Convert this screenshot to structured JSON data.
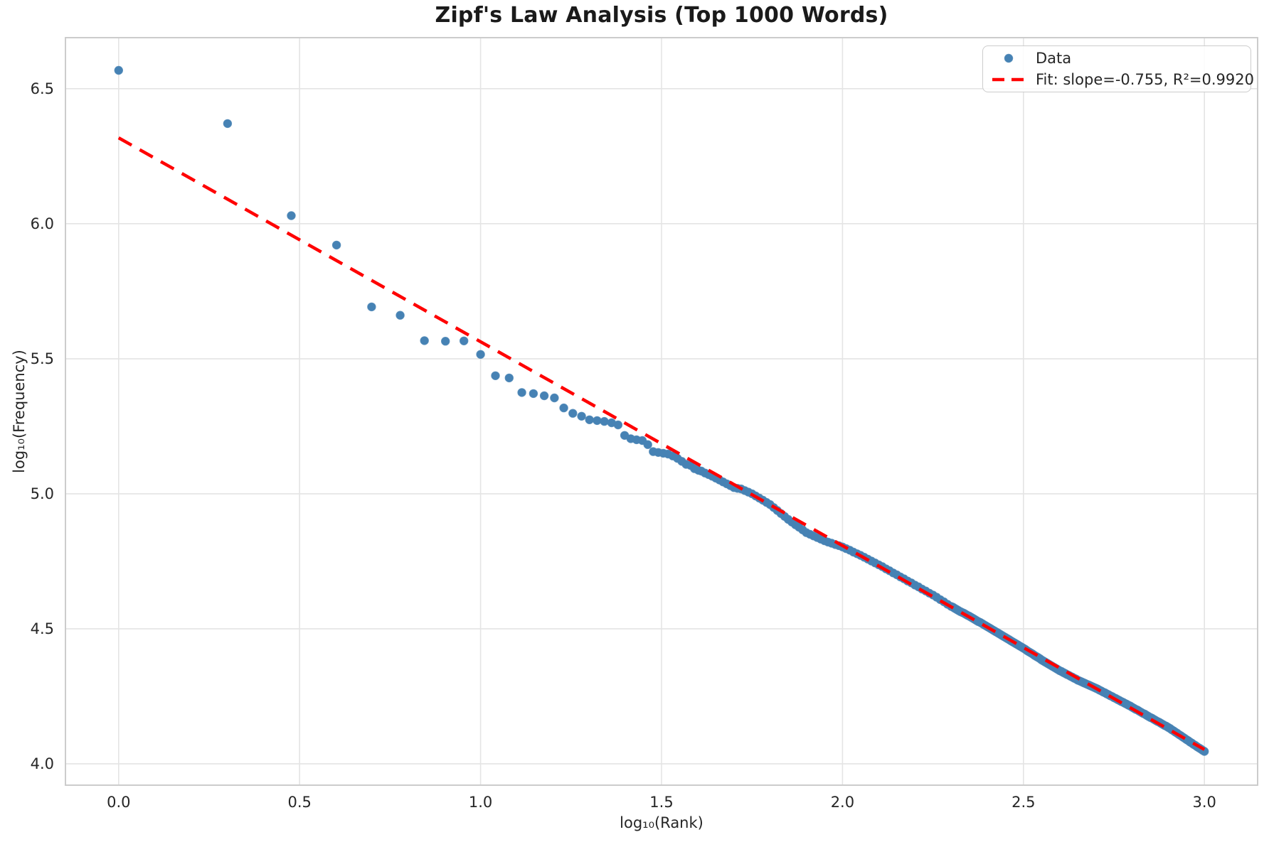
{
  "chart_data": {
    "type": "scatter",
    "title": "Zipf's Law Analysis (Top 1000 Words)",
    "xlabel": "log₁₀(Rank)",
    "ylabel": "log₁₀(Frequency)",
    "xlim": [
      -0.147,
      3.147
    ],
    "ylim": [
      3.921,
      6.689
    ],
    "xticks": [
      0.0,
      0.5,
      1.0,
      1.5,
      2.0,
      2.5,
      3.0
    ],
    "xtick_labels": [
      "0.0",
      "0.5",
      "1.0",
      "1.5",
      "2.0",
      "2.5",
      "3.0"
    ],
    "yticks": [
      4.0,
      4.5,
      5.0,
      5.5,
      6.0,
      6.5
    ],
    "ytick_labels": [
      "4.0",
      "4.5",
      "5.0",
      "5.5",
      "6.0",
      "6.5"
    ],
    "grid": true,
    "legend": {
      "position": "upper right",
      "entries": [
        {
          "label": "Data",
          "type": "marker"
        },
        {
          "label": "Fit: slope=-0.755, R²=0.9920",
          "type": "dashed-line"
        }
      ]
    },
    "fit_line": {
      "slope": -0.755,
      "r_squared": 0.992,
      "x": [
        0.0,
        3.0
      ],
      "y": [
        6.318,
        4.053
      ]
    },
    "colors": {
      "marker": "#4682b4",
      "marker_alpha": 0.5,
      "marker_edge_alpha": 0.85,
      "fit_line": "#ff0000",
      "grid": "#e4e4e4",
      "spine": "#cccccc",
      "text": "#262626",
      "title": "#1a1a1a"
    },
    "marker_radius": 5.5,
    "series": [
      {
        "name": "Data",
        "points": [
          [
            0.0,
            6.568
          ],
          [
            0.301,
            6.371
          ],
          [
            0.477,
            6.03
          ],
          [
            0.602,
            5.921
          ],
          [
            0.699,
            5.692
          ],
          [
            0.778,
            5.661
          ],
          [
            0.845,
            5.567
          ],
          [
            0.903,
            5.565
          ],
          [
            0.954,
            5.566
          ],
          [
            1.0,
            5.516
          ],
          [
            1.041,
            5.437
          ],
          [
            1.079,
            5.429
          ],
          [
            1.114,
            5.375
          ],
          [
            1.146,
            5.371
          ],
          [
            1.176,
            5.363
          ],
          [
            1.204,
            5.355
          ],
          [
            1.23,
            5.318
          ],
          [
            1.255,
            5.298
          ],
          [
            1.279,
            5.287
          ],
          [
            1.301,
            5.274
          ],
          [
            1.322,
            5.271
          ],
          [
            1.342,
            5.268
          ],
          [
            1.362,
            5.263
          ],
          [
            1.38,
            5.255
          ],
          [
            1.398,
            5.216
          ],
          [
            1.415,
            5.204
          ],
          [
            1.431,
            5.2
          ],
          [
            1.447,
            5.197
          ],
          [
            1.462,
            5.182
          ],
          [
            1.477,
            5.156
          ],
          [
            1.491,
            5.153
          ],
          [
            1.505,
            5.15
          ],
          [
            1.518,
            5.147
          ],
          [
            1.531,
            5.14
          ],
          [
            1.544,
            5.131
          ],
          [
            1.556,
            5.12
          ],
          [
            1.568,
            5.109
          ],
          [
            1.58,
            5.105
          ],
          [
            1.591,
            5.093
          ],
          [
            1.602,
            5.087
          ],
          [
            1.61,
            5.084
          ],
          [
            1.62,
            5.077
          ],
          [
            1.63,
            5.071
          ],
          [
            1.64,
            5.065
          ],
          [
            1.65,
            5.058
          ],
          [
            1.66,
            5.051
          ],
          [
            1.67,
            5.044
          ],
          [
            1.68,
            5.037
          ],
          [
            1.69,
            5.03
          ],
          [
            1.7,
            5.023
          ],
          [
            1.71,
            5.02
          ],
          [
            1.72,
            5.018
          ],
          [
            1.73,
            5.012
          ],
          [
            1.74,
            5.006
          ],
          [
            1.75,
            5.0
          ],
          [
            1.76,
            4.992
          ],
          [
            1.77,
            4.984
          ],
          [
            1.78,
            4.976
          ],
          [
            1.79,
            4.968
          ],
          [
            1.8,
            4.96
          ],
          [
            1.81,
            4.949
          ],
          [
            1.82,
            4.938
          ],
          [
            1.83,
            4.927
          ],
          [
            1.84,
            4.916
          ],
          [
            1.85,
            4.905
          ],
          [
            1.86,
            4.895
          ],
          [
            1.87,
            4.885
          ],
          [
            1.88,
            4.876
          ],
          [
            1.89,
            4.866
          ],
          [
            1.9,
            4.856
          ],
          [
            1.91,
            4.85
          ],
          [
            1.92,
            4.844
          ],
          [
            1.93,
            4.838
          ],
          [
            1.94,
            4.832
          ],
          [
            1.95,
            4.826
          ],
          [
            1.96,
            4.821
          ],
          [
            1.97,
            4.817
          ],
          [
            1.98,
            4.812
          ],
          [
            1.99,
            4.808
          ],
          [
            2.0,
            4.803
          ],
          [
            2.01,
            4.797
          ],
          [
            2.02,
            4.791
          ],
          [
            2.03,
            4.784
          ],
          [
            2.04,
            4.778
          ],
          [
            2.05,
            4.772
          ],
          [
            2.06,
            4.765
          ],
          [
            2.07,
            4.758
          ],
          [
            2.08,
            4.751
          ],
          [
            2.09,
            4.744
          ],
          [
            2.1,
            4.737
          ],
          [
            2.11,
            4.73
          ],
          [
            2.12,
            4.722
          ],
          [
            2.13,
            4.715
          ],
          [
            2.14,
            4.707
          ],
          [
            2.15,
            4.7
          ],
          [
            2.16,
            4.692
          ],
          [
            2.17,
            4.685
          ],
          [
            2.18,
            4.677
          ],
          [
            2.19,
            4.67
          ],
          [
            2.2,
            4.662
          ],
          [
            2.21,
            4.655
          ],
          [
            2.22,
            4.647
          ],
          [
            2.23,
            4.64
          ],
          [
            2.24,
            4.632
          ],
          [
            2.25,
            4.625
          ],
          [
            2.26,
            4.617
          ],
          [
            2.27,
            4.608
          ],
          [
            2.28,
            4.6
          ],
          [
            2.29,
            4.591
          ],
          [
            2.3,
            4.583
          ],
          [
            2.31,
            4.576
          ],
          [
            2.32,
            4.568
          ],
          [
            2.33,
            4.561
          ],
          [
            2.34,
            4.554
          ],
          [
            2.35,
            4.547
          ],
          [
            2.36,
            4.539
          ],
          [
            2.37,
            4.531
          ],
          [
            2.38,
            4.524
          ],
          [
            2.39,
            4.516
          ],
          [
            2.4,
            4.508
          ],
          [
            2.41,
            4.5
          ],
          [
            2.42,
            4.492
          ],
          [
            2.43,
            4.484
          ],
          [
            2.44,
            4.476
          ],
          [
            2.45,
            4.468
          ],
          [
            2.46,
            4.46
          ],
          [
            2.47,
            4.452
          ],
          [
            2.48,
            4.444
          ],
          [
            2.49,
            4.436
          ],
          [
            2.5,
            4.428
          ],
          [
            2.51,
            4.419
          ],
          [
            2.52,
            4.411
          ],
          [
            2.53,
            4.402
          ],
          [
            2.54,
            4.394
          ],
          [
            2.55,
            4.385
          ],
          [
            2.56,
            4.377
          ],
          [
            2.57,
            4.369
          ],
          [
            2.58,
            4.361
          ],
          [
            2.59,
            4.353
          ],
          [
            2.6,
            4.345
          ],
          [
            2.61,
            4.338
          ],
          [
            2.62,
            4.331
          ],
          [
            2.63,
            4.324
          ],
          [
            2.64,
            4.317
          ],
          [
            2.65,
            4.31
          ],
          [
            2.66,
            4.304
          ],
          [
            2.67,
            4.298
          ],
          [
            2.68,
            4.292
          ],
          [
            2.69,
            4.286
          ],
          [
            2.7,
            4.28
          ],
          [
            2.71,
            4.273
          ],
          [
            2.72,
            4.266
          ],
          [
            2.73,
            4.259
          ],
          [
            2.74,
            4.252
          ],
          [
            2.75,
            4.245
          ],
          [
            2.76,
            4.238
          ],
          [
            2.77,
            4.231
          ],
          [
            2.78,
            4.224
          ],
          [
            2.79,
            4.217
          ],
          [
            2.8,
            4.21
          ],
          [
            2.81,
            4.202
          ],
          [
            2.82,
            4.195
          ],
          [
            2.83,
            4.187
          ],
          [
            2.84,
            4.18
          ],
          [
            2.85,
            4.172
          ],
          [
            2.86,
            4.165
          ],
          [
            2.87,
            4.157
          ],
          [
            2.88,
            4.15
          ],
          [
            2.89,
            4.142
          ],
          [
            2.9,
            4.135
          ],
          [
            2.91,
            4.126
          ],
          [
            2.92,
            4.117
          ],
          [
            2.93,
            4.108
          ],
          [
            2.94,
            4.099
          ],
          [
            2.95,
            4.09
          ],
          [
            2.96,
            4.081
          ],
          [
            2.97,
            4.072
          ],
          [
            2.98,
            4.063
          ],
          [
            2.99,
            4.055
          ],
          [
            3.0,
            4.046
          ],
          [
            2.305,
            4.58
          ],
          [
            2.315,
            4.572
          ],
          [
            2.325,
            4.564
          ],
          [
            2.335,
            4.558
          ],
          [
            2.345,
            4.55
          ],
          [
            2.355,
            4.543
          ],
          [
            2.365,
            4.535
          ],
          [
            2.375,
            4.527
          ],
          [
            2.385,
            4.52
          ],
          [
            2.395,
            4.512
          ],
          [
            2.405,
            4.504
          ],
          [
            2.415,
            4.496
          ],
          [
            2.425,
            4.488
          ],
          [
            2.435,
            4.48
          ],
          [
            2.445,
            4.472
          ],
          [
            2.455,
            4.464
          ],
          [
            2.465,
            4.456
          ],
          [
            2.475,
            4.448
          ],
          [
            2.485,
            4.44
          ],
          [
            2.495,
            4.432
          ],
          [
            2.505,
            4.424
          ],
          [
            2.515,
            4.415
          ],
          [
            2.525,
            4.407
          ],
          [
            2.535,
            4.398
          ],
          [
            2.545,
            4.39
          ],
          [
            2.555,
            4.381
          ],
          [
            2.565,
            4.373
          ],
          [
            2.575,
            4.365
          ],
          [
            2.585,
            4.357
          ],
          [
            2.595,
            4.349
          ],
          [
            2.605,
            4.342
          ],
          [
            2.615,
            4.335
          ],
          [
            2.625,
            4.328
          ],
          [
            2.635,
            4.321
          ],
          [
            2.645,
            4.314
          ],
          [
            2.655,
            4.307
          ],
          [
            2.665,
            4.301
          ],
          [
            2.675,
            4.295
          ],
          [
            2.685,
            4.289
          ],
          [
            2.695,
            4.283
          ],
          [
            2.705,
            4.277
          ],
          [
            2.715,
            4.27
          ],
          [
            2.725,
            4.263
          ],
          [
            2.735,
            4.256
          ],
          [
            2.745,
            4.249
          ],
          [
            2.755,
            4.242
          ],
          [
            2.765,
            4.235
          ],
          [
            2.775,
            4.228
          ],
          [
            2.785,
            4.221
          ],
          [
            2.795,
            4.214
          ],
          [
            2.805,
            4.206
          ],
          [
            2.815,
            4.199
          ],
          [
            2.825,
            4.191
          ],
          [
            2.835,
            4.184
          ],
          [
            2.845,
            4.176
          ],
          [
            2.855,
            4.169
          ],
          [
            2.865,
            4.161
          ],
          [
            2.875,
            4.154
          ],
          [
            2.885,
            4.146
          ],
          [
            2.895,
            4.139
          ],
          [
            2.905,
            4.131
          ],
          [
            2.915,
            4.122
          ],
          [
            2.925,
            4.113
          ],
          [
            2.935,
            4.104
          ],
          [
            2.945,
            4.095
          ],
          [
            2.955,
            4.086
          ],
          [
            2.965,
            4.077
          ],
          [
            2.975,
            4.068
          ],
          [
            2.985,
            4.059
          ],
          [
            2.995,
            4.05
          ]
        ]
      }
    ]
  }
}
